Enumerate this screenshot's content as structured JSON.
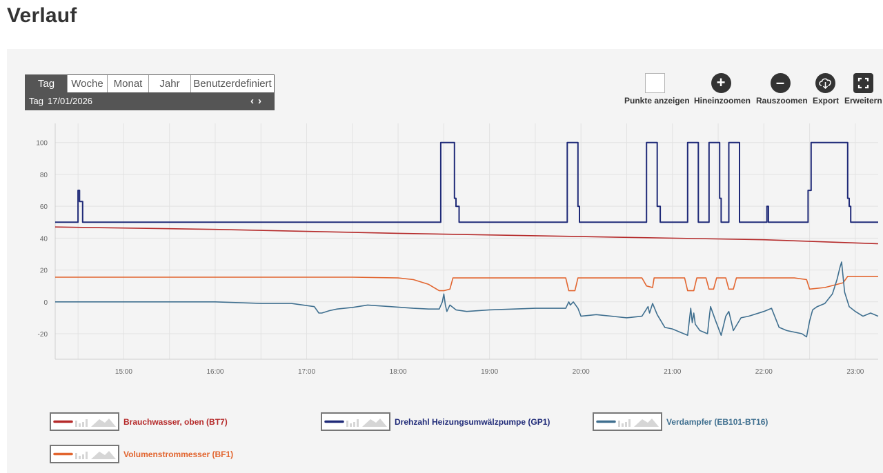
{
  "page": {
    "title": "Verlauf"
  },
  "range": {
    "tabs": [
      "Tag",
      "Woche",
      "Monat",
      "Jahr",
      "Benutzerdefiniert"
    ],
    "active_tab": "Tag",
    "period_label": "Tag",
    "date": "17/01/2026",
    "prev_icon": "chevron-left-icon",
    "next_icon": "chevron-right-icon"
  },
  "toolbar": {
    "points_label": "Punkte anzeigen",
    "zoom_in_label": "Hineinzoomen",
    "zoom_out_label": "Rauszoomen",
    "export_label": "Export",
    "expand_label": "Erweitern"
  },
  "legend": [
    {
      "label": "Brauchwasser, oben (BT7)",
      "color": "#b52a2a"
    },
    {
      "label": "Drehzahl Heizungsumwälzpumpe (GP1)",
      "color": "#1f2a78"
    },
    {
      "label": "Verdampfer (EB101-BT16)",
      "color": "#3f6f8f"
    },
    {
      "label": "Volumenstrommesser (BF1)",
      "color": "#e2652f"
    }
  ],
  "chart_data": {
    "type": "line",
    "x_unit": "time (hours, 17/01/2026)",
    "x_ticks": [
      "15:00",
      "16:00",
      "17:00",
      "18:00",
      "19:00",
      "20:00",
      "21:00",
      "22:00",
      "23:00"
    ],
    "xlim": [
      "14:15",
      "23:15"
    ],
    "y_ticks": [
      "100",
      "80",
      "60",
      "40",
      "20",
      "0",
      "-20"
    ],
    "ylim": [
      -36,
      112
    ],
    "grid": true,
    "series": [
      {
        "name": "Brauchwasser, oben (BT7)",
        "color": "#b52a2a",
        "points": [
          [
            "14:15",
            47
          ],
          [
            "16:00",
            45.5
          ],
          [
            "18:00",
            43
          ],
          [
            "20:00",
            41
          ],
          [
            "22:00",
            39
          ],
          [
            "23:15",
            36.5
          ]
        ]
      },
      {
        "name": "Drehzahl Heizungsumwälzpumpe (GP1)",
        "color": "#1f2a78",
        "step": true,
        "points": [
          [
            "14:15",
            50
          ],
          [
            "14:30",
            50
          ],
          [
            "14:30",
            70
          ],
          [
            "14:31",
            70
          ],
          [
            "14:31",
            63
          ],
          [
            "14:33",
            63
          ],
          [
            "14:33",
            50
          ],
          [
            "18:28",
            50
          ],
          [
            "18:28",
            100
          ],
          [
            "18:37",
            100
          ],
          [
            "18:37",
            65
          ],
          [
            "18:38",
            65
          ],
          [
            "18:38",
            60
          ],
          [
            "18:40",
            60
          ],
          [
            "18:40",
            50
          ],
          [
            "19:51",
            50
          ],
          [
            "19:51",
            100
          ],
          [
            "19:58",
            100
          ],
          [
            "19:58",
            60
          ],
          [
            "19:59",
            60
          ],
          [
            "19:59",
            50
          ],
          [
            "20:43",
            50
          ],
          [
            "20:43",
            100
          ],
          [
            "20:50",
            100
          ],
          [
            "20:50",
            60
          ],
          [
            "20:52",
            60
          ],
          [
            "20:52",
            50
          ],
          [
            "21:10",
            50
          ],
          [
            "21:10",
            100
          ],
          [
            "21:17",
            100
          ],
          [
            "21:17",
            50
          ],
          [
            "21:24",
            50
          ],
          [
            "21:24",
            100
          ],
          [
            "21:31",
            100
          ],
          [
            "21:31",
            65
          ],
          [
            "21:32",
            65
          ],
          [
            "21:32",
            50
          ],
          [
            "21:37",
            50
          ],
          [
            "21:37",
            100
          ],
          [
            "21:44",
            100
          ],
          [
            "21:44",
            50
          ],
          [
            "22:02",
            50
          ],
          [
            "22:02",
            60
          ],
          [
            "22:03",
            60
          ],
          [
            "22:03",
            50
          ],
          [
            "22:29",
            50
          ],
          [
            "22:29",
            70
          ],
          [
            "22:31",
            70
          ],
          [
            "22:31",
            100
          ],
          [
            "22:55",
            100
          ],
          [
            "22:55",
            65
          ],
          [
            "22:56",
            65
          ],
          [
            "22:56",
            60
          ],
          [
            "22:57",
            60
          ],
          [
            "22:57",
            50
          ],
          [
            "23:15",
            50
          ]
        ]
      },
      {
        "name": "Verdampfer (EB101-BT16)",
        "color": "#3f6f8f",
        "points": [
          [
            "14:15",
            0
          ],
          [
            "16:00",
            0
          ],
          [
            "16:30",
            -1
          ],
          [
            "16:50",
            -1
          ],
          [
            "17:05",
            -3
          ],
          [
            "17:08",
            -7
          ],
          [
            "17:10",
            -7
          ],
          [
            "17:15",
            -5.5
          ],
          [
            "17:20",
            -4.5
          ],
          [
            "17:30",
            -3.5
          ],
          [
            "17:40",
            -2
          ],
          [
            "17:55",
            -3
          ],
          [
            "18:10",
            -4
          ],
          [
            "18:20",
            -4.5
          ],
          [
            "18:27",
            -4.5
          ],
          [
            "18:29",
            0
          ],
          [
            "18:30",
            5
          ],
          [
            "18:31",
            -2
          ],
          [
            "18:32",
            -6
          ],
          [
            "18:34",
            -2
          ],
          [
            "18:38",
            -5
          ],
          [
            "18:45",
            -6
          ],
          [
            "19:00",
            -5
          ],
          [
            "19:30",
            -4
          ],
          [
            "19:50",
            -4
          ],
          [
            "19:52",
            0
          ],
          [
            "19:53",
            -2
          ],
          [
            "19:55",
            0
          ],
          [
            "19:58",
            -4
          ],
          [
            "20:00",
            -9
          ],
          [
            "20:10",
            -8
          ],
          [
            "20:30",
            -10
          ],
          [
            "20:40",
            -9
          ],
          [
            "20:44",
            -3
          ],
          [
            "20:45",
            -7
          ],
          [
            "20:47",
            -1
          ],
          [
            "20:50",
            -8
          ],
          [
            "20:55",
            -16
          ],
          [
            "21:00",
            -17
          ],
          [
            "21:05",
            -19
          ],
          [
            "21:10",
            -21
          ],
          [
            "21:12",
            -4
          ],
          [
            "21:13",
            -13
          ],
          [
            "21:14",
            -7
          ],
          [
            "21:15",
            -14
          ],
          [
            "21:18",
            -18
          ],
          [
            "21:23",
            -20
          ],
          [
            "21:24",
            -11
          ],
          [
            "21:25",
            -3
          ],
          [
            "21:28",
            -11
          ],
          [
            "21:32",
            -21
          ],
          [
            "21:35",
            -9
          ],
          [
            "21:37",
            -6
          ],
          [
            "21:40",
            -18
          ],
          [
            "21:45",
            -10
          ],
          [
            "21:50",
            -9
          ],
          [
            "22:00",
            -6
          ],
          [
            "22:05",
            -4
          ],
          [
            "22:10",
            -16
          ],
          [
            "22:15",
            -18
          ],
          [
            "22:25",
            -20
          ],
          [
            "22:28",
            -22
          ],
          [
            "22:30",
            -12
          ],
          [
            "22:32",
            -5
          ],
          [
            "22:35",
            -3
          ],
          [
            "22:40",
            -1
          ],
          [
            "22:45",
            5
          ],
          [
            "22:48",
            14
          ],
          [
            "22:50",
            22
          ],
          [
            "22:51",
            25
          ],
          [
            "22:53",
            6
          ],
          [
            "22:56",
            -3
          ],
          [
            "23:00",
            -6
          ],
          [
            "23:05",
            -9
          ],
          [
            "23:10",
            -7
          ],
          [
            "23:15",
            -9
          ]
        ]
      },
      {
        "name": "Volumenstrommesser (BF1)",
        "color": "#e2652f",
        "points": [
          [
            "14:15",
            15.5
          ],
          [
            "16:00",
            15.5
          ],
          [
            "17:30",
            15.5
          ],
          [
            "18:00",
            15
          ],
          [
            "18:10",
            14
          ],
          [
            "18:20",
            11
          ],
          [
            "18:27",
            7
          ],
          [
            "18:30",
            7
          ],
          [
            "18:34",
            8
          ],
          [
            "18:36",
            15
          ],
          [
            "19:50",
            15
          ],
          [
            "19:52",
            7
          ],
          [
            "19:56",
            7
          ],
          [
            "19:58",
            15
          ],
          [
            "20:40",
            15
          ],
          [
            "20:43",
            10
          ],
          [
            "20:47",
            9
          ],
          [
            "20:48",
            15
          ],
          [
            "21:08",
            15
          ],
          [
            "21:10",
            7
          ],
          [
            "21:14",
            7
          ],
          [
            "21:16",
            15
          ],
          [
            "21:22",
            15
          ],
          [
            "21:24",
            8
          ],
          [
            "21:27",
            8
          ],
          [
            "21:29",
            15
          ],
          [
            "21:35",
            15
          ],
          [
            "21:37",
            8
          ],
          [
            "21:40",
            8
          ],
          [
            "21:42",
            15
          ],
          [
            "22:20",
            15
          ],
          [
            "22:28",
            14
          ],
          [
            "22:30",
            8
          ],
          [
            "22:40",
            9
          ],
          [
            "22:52",
            12
          ],
          [
            "22:55",
            16
          ],
          [
            "23:15",
            16
          ]
        ]
      }
    ]
  }
}
